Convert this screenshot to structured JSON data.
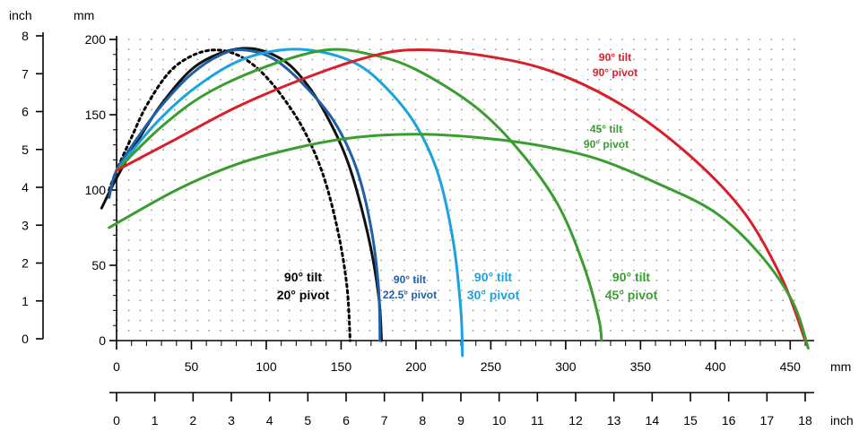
{
  "chart_data": {
    "type": "line",
    "title": "",
    "units": {
      "left_outer": "inch",
      "left_inner": "mm",
      "bottom_mm": "mm",
      "bottom_inch": "inch"
    },
    "x_mm": {
      "range": [
        0,
        460
      ],
      "ticks": [
        0,
        50,
        100,
        150,
        200,
        250,
        300,
        350,
        400,
        450
      ]
    },
    "x_inch": {
      "range": [
        0,
        18
      ],
      "ticks": [
        0,
        1,
        2,
        3,
        4,
        5,
        6,
        7,
        8,
        9,
        10,
        11,
        12,
        13,
        14,
        15,
        16,
        17,
        18
      ]
    },
    "y_mm": {
      "range": [
        0,
        200
      ],
      "ticks": [
        0,
        50,
        100,
        150,
        200
      ]
    },
    "y_inch": {
      "range": [
        0,
        8
      ],
      "ticks": [
        0,
        1,
        2,
        3,
        4,
        5,
        6,
        7,
        8
      ]
    },
    "grid": "dotted",
    "series": [
      {
        "color": "#000000",
        "dashed": true,
        "points": [
          [
            -5,
            100
          ],
          [
            0,
            113
          ],
          [
            10,
            135
          ],
          [
            20,
            156
          ],
          [
            35,
            178
          ],
          [
            50,
            189
          ],
          [
            65,
            193
          ],
          [
            80,
            190
          ],
          [
            95,
            180
          ],
          [
            110,
            163
          ],
          [
            125,
            140
          ],
          [
            138,
            110
          ],
          [
            148,
            72
          ],
          [
            154,
            35
          ],
          [
            156,
            0
          ]
        ]
      },
      {
        "color": "#111111",
        "dashed": false,
        "points": [
          [
            -10,
            88
          ],
          [
            0,
            108
          ],
          [
            15,
            134
          ],
          [
            30,
            157
          ],
          [
            50,
            180
          ],
          [
            70,
            191
          ],
          [
            90,
            194
          ],
          [
            110,
            187
          ],
          [
            125,
            173
          ],
          [
            140,
            150
          ],
          [
            155,
            117
          ],
          [
            168,
            70
          ],
          [
            175,
            30
          ],
          [
            177,
            0
          ]
        ]
      },
      {
        "color": "#1f5fa8",
        "dashed": false,
        "points": [
          [
            -5,
            95
          ],
          [
            0,
            113
          ],
          [
            15,
            136
          ],
          [
            30,
            156
          ],
          [
            50,
            177
          ],
          [
            70,
            190
          ],
          [
            85,
            193
          ],
          [
            105,
            187
          ],
          [
            125,
            170
          ],
          [
            145,
            146
          ],
          [
            160,
            115
          ],
          [
            170,
            75
          ],
          [
            175,
            35
          ],
          [
            176,
            0
          ]
        ]
      },
      {
        "color": "#1aa3de",
        "dashed": false,
        "points": [
          [
            0,
            113
          ],
          [
            25,
            143
          ],
          [
            50,
            166
          ],
          [
            80,
            185
          ],
          [
            110,
            193
          ],
          [
            135,
            192
          ],
          [
            160,
            184
          ],
          [
            180,
            168
          ],
          [
            200,
            143
          ],
          [
            215,
            110
          ],
          [
            225,
            65
          ],
          [
            230,
            20
          ],
          [
            231,
            -10
          ]
        ]
      },
      {
        "color": "#3a9d2f",
        "dashed": false,
        "points": [
          [
            0,
            113
          ],
          [
            30,
            142
          ],
          [
            60,
            164
          ],
          [
            100,
            182
          ],
          [
            140,
            193
          ],
          [
            170,
            190
          ],
          [
            200,
            180
          ],
          [
            240,
            155
          ],
          [
            270,
            125
          ],
          [
            295,
            90
          ],
          [
            312,
            50
          ],
          [
            322,
            15
          ],
          [
            324,
            0
          ]
        ]
      },
      {
        "color": "#d8202b",
        "dashed": false,
        "points": [
          [
            0,
            113
          ],
          [
            40,
            134
          ],
          [
            80,
            155
          ],
          [
            120,
            172
          ],
          [
            160,
            186
          ],
          [
            195,
            193
          ],
          [
            240,
            190
          ],
          [
            290,
            179
          ],
          [
            340,
            155
          ],
          [
            385,
            121
          ],
          [
            420,
            84
          ],
          [
            445,
            40
          ],
          [
            460,
            0
          ]
        ]
      },
      {
        "color": "#3a9d2f",
        "dashed": false,
        "points": [
          [
            -5,
            75
          ],
          [
            40,
            100
          ],
          [
            80,
            117
          ],
          [
            120,
            128
          ],
          [
            160,
            135
          ],
          [
            200,
            137
          ],
          [
            240,
            135
          ],
          [
            280,
            130
          ],
          [
            320,
            121
          ],
          [
            360,
            105
          ],
          [
            400,
            85
          ],
          [
            430,
            57
          ],
          [
            452,
            25
          ],
          [
            462,
            -5
          ]
        ]
      }
    ],
    "annotations": [
      {
        "line1": "90° tilt",
        "line2": "20° pivot",
        "color": "#000000"
      },
      {
        "line1": "90° tilt",
        "line2": "22.5° pivot",
        "color": "#1f5fa8"
      },
      {
        "line1": "90° tilt",
        "line2": "30° pivot",
        "color": "#1aa3de"
      },
      {
        "line1": "90° tilt",
        "line2": "45° pivot",
        "color": "#3a9d2f"
      },
      {
        "line1": "90° tilt",
        "line2": "90° pivot",
        "color": "#d8202b"
      },
      {
        "line1": "45° tilt",
        "line2": "90° pivot",
        "color": "#3a9d2f"
      }
    ]
  }
}
